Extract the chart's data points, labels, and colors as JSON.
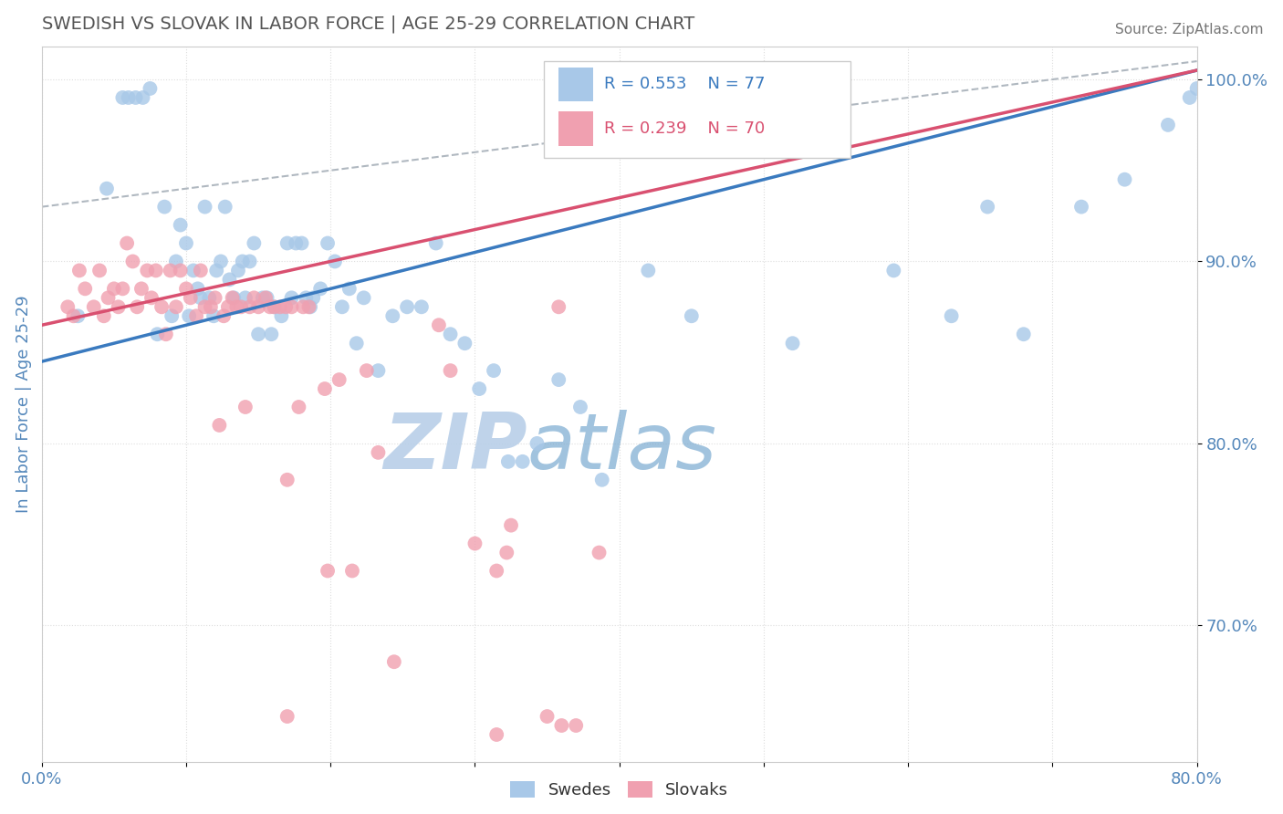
{
  "title": "SWEDISH VS SLOVAK IN LABOR FORCE | AGE 25-29 CORRELATION CHART",
  "source_text": "Source: ZipAtlas.com",
  "ylabel_text": "In Labor Force | Age 25-29",
  "xmin": 0.0,
  "xmax": 0.8,
  "ymin": 0.625,
  "ymax": 1.018,
  "yticks": [
    0.7,
    0.8,
    0.9,
    1.0
  ],
  "ytick_labels": [
    "70.0%",
    "80.0%",
    "90.0%",
    "100.0%"
  ],
  "xtick_positions": [
    0.0,
    0.1,
    0.2,
    0.3,
    0.4,
    0.5,
    0.6,
    0.7,
    0.8
  ],
  "xtick_labels": [
    "0.0%",
    "",
    "",
    "",
    "",
    "",
    "",
    "",
    "80.0%"
  ],
  "legend_r_blue": "R = 0.553",
  "legend_n_blue": "N = 77",
  "legend_r_pink": "R = 0.239",
  "legend_n_pink": "N = 70",
  "blue_color": "#a8c8e8",
  "pink_color": "#f0a0b0",
  "blue_line_color": "#3a7abf",
  "pink_line_color": "#d95070",
  "dashed_line_color": "#b0b8c0",
  "title_color": "#555555",
  "axis_label_color": "#5588bb",
  "watermark_color": "#ccdff0",
  "blue_line_x0": 0.0,
  "blue_line_y0": 0.845,
  "blue_line_x1": 0.8,
  "blue_line_y1": 1.005,
  "pink_line_x0": 0.0,
  "pink_line_y0": 0.865,
  "pink_line_x1": 0.8,
  "pink_line_y1": 1.005,
  "dash_line_x0": 0.0,
  "dash_line_y0": 0.93,
  "dash_line_x1": 0.8,
  "dash_line_y1": 1.01,
  "blue_scatter": [
    [
      0.025,
      0.87
    ],
    [
      0.045,
      0.94
    ],
    [
      0.056,
      0.99
    ],
    [
      0.06,
      0.99
    ],
    [
      0.065,
      0.99
    ],
    [
      0.07,
      0.99
    ],
    [
      0.075,
      0.995
    ],
    [
      0.08,
      0.86
    ],
    [
      0.085,
      0.93
    ],
    [
      0.09,
      0.87
    ],
    [
      0.093,
      0.9
    ],
    [
      0.096,
      0.92
    ],
    [
      0.1,
      0.91
    ],
    [
      0.102,
      0.87
    ],
    [
      0.105,
      0.895
    ],
    [
      0.108,
      0.885
    ],
    [
      0.11,
      0.88
    ],
    [
      0.113,
      0.93
    ],
    [
      0.116,
      0.88
    ],
    [
      0.119,
      0.87
    ],
    [
      0.121,
      0.895
    ],
    [
      0.124,
      0.9
    ],
    [
      0.127,
      0.93
    ],
    [
      0.13,
      0.89
    ],
    [
      0.133,
      0.88
    ],
    [
      0.136,
      0.895
    ],
    [
      0.139,
      0.9
    ],
    [
      0.141,
      0.88
    ],
    [
      0.144,
      0.9
    ],
    [
      0.147,
      0.91
    ],
    [
      0.15,
      0.86
    ],
    [
      0.153,
      0.88
    ],
    [
      0.156,
      0.88
    ],
    [
      0.159,
      0.86
    ],
    [
      0.161,
      0.875
    ],
    [
      0.166,
      0.87
    ],
    [
      0.17,
      0.91
    ],
    [
      0.173,
      0.88
    ],
    [
      0.176,
      0.91
    ],
    [
      0.18,
      0.91
    ],
    [
      0.183,
      0.88
    ],
    [
      0.186,
      0.875
    ],
    [
      0.188,
      0.88
    ],
    [
      0.193,
      0.885
    ],
    [
      0.198,
      0.91
    ],
    [
      0.203,
      0.9
    ],
    [
      0.208,
      0.875
    ],
    [
      0.213,
      0.885
    ],
    [
      0.218,
      0.855
    ],
    [
      0.223,
      0.88
    ],
    [
      0.233,
      0.84
    ],
    [
      0.243,
      0.87
    ],
    [
      0.253,
      0.875
    ],
    [
      0.263,
      0.875
    ],
    [
      0.273,
      0.91
    ],
    [
      0.283,
      0.86
    ],
    [
      0.293,
      0.855
    ],
    [
      0.303,
      0.83
    ],
    [
      0.313,
      0.84
    ],
    [
      0.323,
      0.79
    ],
    [
      0.333,
      0.79
    ],
    [
      0.343,
      0.8
    ],
    [
      0.358,
      0.835
    ],
    [
      0.373,
      0.82
    ],
    [
      0.388,
      0.78
    ],
    [
      0.42,
      0.895
    ],
    [
      0.45,
      0.87
    ],
    [
      0.52,
      0.855
    ],
    [
      0.59,
      0.895
    ],
    [
      0.63,
      0.87
    ],
    [
      0.655,
      0.93
    ],
    [
      0.68,
      0.86
    ],
    [
      0.72,
      0.93
    ],
    [
      0.75,
      0.945
    ],
    [
      0.78,
      0.975
    ],
    [
      0.795,
      0.99
    ],
    [
      0.8,
      0.995
    ]
  ],
  "pink_scatter": [
    [
      0.018,
      0.875
    ],
    [
      0.022,
      0.87
    ],
    [
      0.026,
      0.895
    ],
    [
      0.03,
      0.885
    ],
    [
      0.036,
      0.875
    ],
    [
      0.04,
      0.895
    ],
    [
      0.043,
      0.87
    ],
    [
      0.046,
      0.88
    ],
    [
      0.05,
      0.885
    ],
    [
      0.053,
      0.875
    ],
    [
      0.056,
      0.885
    ],
    [
      0.059,
      0.91
    ],
    [
      0.063,
      0.9
    ],
    [
      0.066,
      0.875
    ],
    [
      0.069,
      0.885
    ],
    [
      0.073,
      0.895
    ],
    [
      0.076,
      0.88
    ],
    [
      0.079,
      0.895
    ],
    [
      0.083,
      0.875
    ],
    [
      0.086,
      0.86
    ],
    [
      0.089,
      0.895
    ],
    [
      0.093,
      0.875
    ],
    [
      0.096,
      0.895
    ],
    [
      0.1,
      0.885
    ],
    [
      0.103,
      0.88
    ],
    [
      0.107,
      0.87
    ],
    [
      0.11,
      0.895
    ],
    [
      0.113,
      0.875
    ],
    [
      0.117,
      0.875
    ],
    [
      0.12,
      0.88
    ],
    [
      0.123,
      0.81
    ],
    [
      0.126,
      0.87
    ],
    [
      0.129,
      0.875
    ],
    [
      0.132,
      0.88
    ],
    [
      0.135,
      0.875
    ],
    [
      0.138,
      0.875
    ],
    [
      0.141,
      0.82
    ],
    [
      0.144,
      0.875
    ],
    [
      0.147,
      0.88
    ],
    [
      0.15,
      0.875
    ],
    [
      0.155,
      0.88
    ],
    [
      0.158,
      0.875
    ],
    [
      0.161,
      0.875
    ],
    [
      0.165,
      0.875
    ],
    [
      0.169,
      0.875
    ],
    [
      0.17,
      0.65
    ],
    [
      0.173,
      0.875
    ],
    [
      0.178,
      0.82
    ],
    [
      0.181,
      0.875
    ],
    [
      0.185,
      0.875
    ],
    [
      0.196,
      0.83
    ],
    [
      0.206,
      0.835
    ],
    [
      0.215,
      0.73
    ],
    [
      0.225,
      0.84
    ],
    [
      0.233,
      0.795
    ],
    [
      0.244,
      0.68
    ],
    [
      0.275,
      0.865
    ],
    [
      0.283,
      0.84
    ],
    [
      0.3,
      0.745
    ],
    [
      0.315,
      0.73
    ],
    [
      0.322,
      0.74
    ],
    [
      0.358,
      0.875
    ],
    [
      0.37,
      0.645
    ],
    [
      0.386,
      0.74
    ],
    [
      0.315,
      0.64
    ],
    [
      0.35,
      0.65
    ],
    [
      0.36,
      0.645
    ],
    [
      0.17,
      0.78
    ],
    [
      0.198,
      0.73
    ],
    [
      0.325,
      0.755
    ]
  ]
}
